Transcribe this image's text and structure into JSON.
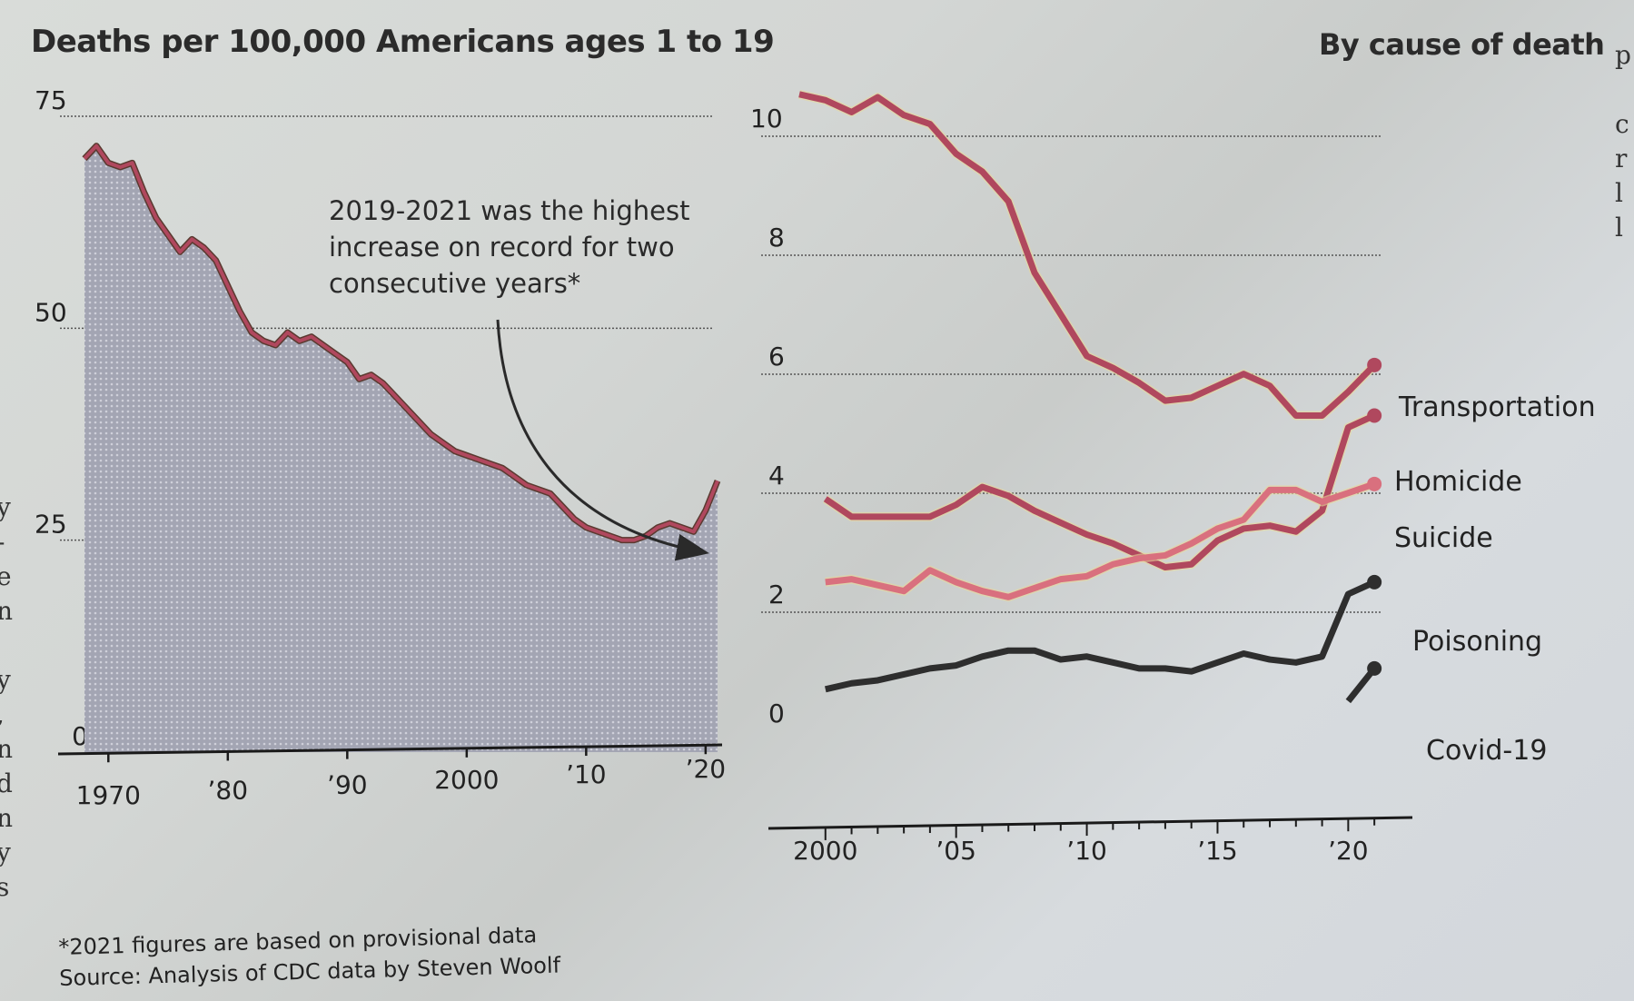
{
  "header": {
    "main_title": "Deaths per 100,000 Americans ages 1 to 19",
    "right_title": "By cause of death"
  },
  "annotation": {
    "lines": [
      "2019-2021 was the highest",
      "increase on record for two",
      "consecutive years*"
    ]
  },
  "footnote": {
    "lines": [
      "*2021 figures are based on provisional data",
      "Source: Analysis of CDC data by Steven Woolf"
    ]
  },
  "edge_text": {
    "left": [
      "y",
      "-",
      "e",
      "n",
      "",
      "y",
      ",",
      "n",
      "d",
      "n",
      "y",
      "s"
    ],
    "right": [
      "p",
      "",
      "c",
      "r",
      "l",
      "l"
    ]
  },
  "colors": {
    "line_red": "#b0485e",
    "line_pink": "#d9707e",
    "line_dark": "#2e2e2e",
    "area_fill": "#a6a7b4",
    "grid": "#555555"
  },
  "chart_data": [
    {
      "type": "area",
      "title": "Deaths per 100,000 Americans ages 1 to 19",
      "xlabel": "",
      "ylabel": "",
      "ylim": [
        0,
        75
      ],
      "xlim": [
        1968,
        2021
      ],
      "yticks": [
        0,
        25,
        50,
        75
      ],
      "xticks": [
        1970,
        1980,
        1990,
        2000,
        2010,
        2020
      ],
      "xtick_labels": [
        "1970",
        "’80",
        "’90",
        "2000",
        "’10",
        "’20"
      ],
      "grid": true,
      "x": [
        1968,
        1969,
        1970,
        1971,
        1972,
        1973,
        1974,
        1975,
        1976,
        1977,
        1978,
        1979,
        1980,
        1981,
        1982,
        1983,
        1984,
        1985,
        1986,
        1987,
        1988,
        1989,
        1990,
        1991,
        1992,
        1993,
        1994,
        1995,
        1996,
        1997,
        1998,
        1999,
        2000,
        2001,
        2002,
        2003,
        2004,
        2005,
        2006,
        2007,
        2008,
        2009,
        2010,
        2011,
        2012,
        2013,
        2014,
        2015,
        2016,
        2017,
        2018,
        2019,
        2020,
        2021
      ],
      "values": [
        70,
        71.5,
        69.5,
        69,
        69.5,
        66,
        63,
        61,
        59,
        60.5,
        59.5,
        58,
        55,
        52,
        49.5,
        48.5,
        48,
        49.5,
        48.5,
        49,
        48,
        47,
        46,
        44,
        44.5,
        43.5,
        42,
        40.5,
        39,
        37.5,
        36.5,
        35.5,
        35,
        34.5,
        34,
        33.5,
        32.5,
        31.5,
        31,
        30.5,
        29,
        27.5,
        26.5,
        26,
        25.5,
        25,
        25,
        25.5,
        26.5,
        27,
        26.5,
        26,
        28.5,
        32
      ],
      "annotation": "2019-2021 was the highest increase on record for two consecutive years*"
    },
    {
      "type": "line",
      "title": "By cause of death",
      "xlabel": "",
      "ylabel": "",
      "ylim": [
        0,
        10
      ],
      "xlim": [
        1999,
        2021
      ],
      "yticks": [
        0,
        2,
        4,
        6,
        8,
        10
      ],
      "xticks": [
        2000,
        2005,
        2010,
        2015,
        2020
      ],
      "xtick_labels": [
        "2000",
        "’05",
        "’10",
        "’15",
        "’20"
      ],
      "grid": true,
      "legend": "direct labels at line ends (right)",
      "x": [
        1999,
        2000,
        2001,
        2002,
        2003,
        2004,
        2005,
        2006,
        2007,
        2008,
        2009,
        2010,
        2011,
        2012,
        2013,
        2014,
        2015,
        2016,
        2017,
        2018,
        2019,
        2020,
        2021
      ],
      "series": [
        {
          "name": "Transportation",
          "color": "#b0485e",
          "values": [
            10.4,
            10.3,
            10.1,
            10.35,
            10.05,
            9.9,
            9.4,
            9.1,
            8.6,
            7.4,
            6.7,
            6.0,
            5.8,
            5.55,
            5.25,
            5.3,
            5.5,
            5.7,
            5.5,
            5.0,
            5.0,
            5.4,
            5.85
          ]
        },
        {
          "name": "Homicide",
          "color": "#b0485e",
          "values": [
            null,
            3.6,
            3.3,
            3.3,
            3.3,
            3.3,
            3.5,
            3.8,
            3.65,
            3.4,
            3.2,
            3.0,
            2.85,
            2.65,
            2.45,
            2.5,
            2.9,
            3.1,
            3.15,
            3.05,
            3.4,
            4.8,
            5.0
          ]
        },
        {
          "name": "Suicide",
          "color": "#d9707e",
          "values": [
            null,
            2.2,
            2.25,
            2.15,
            2.05,
            2.4,
            2.2,
            2.05,
            1.95,
            2.1,
            2.25,
            2.3,
            2.5,
            2.6,
            2.65,
            2.85,
            3.1,
            3.25,
            3.75,
            3.75,
            3.55,
            3.7,
            3.85
          ]
        },
        {
          "name": "Poisoning",
          "color": "#2e2e2e",
          "values": [
            null,
            0.4,
            0.5,
            0.55,
            0.65,
            0.75,
            0.8,
            0.95,
            1.05,
            1.05,
            0.9,
            0.95,
            0.85,
            0.75,
            0.75,
            0.7,
            0.85,
            1.0,
            0.9,
            0.85,
            0.95,
            2.0,
            2.2
          ]
        },
        {
          "name": "Covid-19",
          "color": "#2e2e2e",
          "values": [
            null,
            null,
            null,
            null,
            null,
            null,
            null,
            null,
            null,
            null,
            null,
            null,
            null,
            null,
            null,
            null,
            null,
            null,
            null,
            null,
            null,
            0.2,
            0.75
          ]
        }
      ]
    }
  ]
}
